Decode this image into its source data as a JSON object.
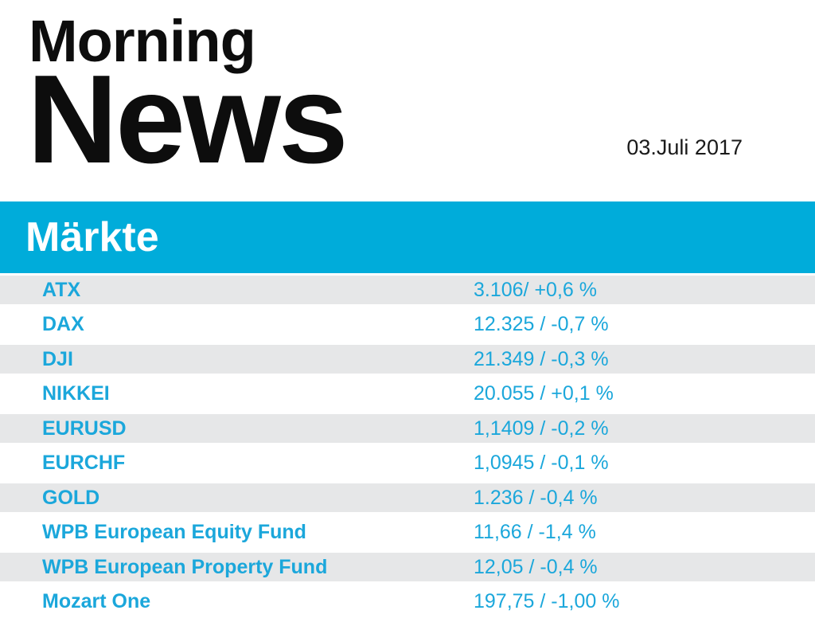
{
  "masthead": {
    "title_line1": "Morning",
    "title_line2": "News",
    "date": "03.Juli 2017"
  },
  "section": {
    "title": "Märkte"
  },
  "markets": {
    "rows": [
      {
        "label": "ATX",
        "value": "3.106/ +0,6 %"
      },
      {
        "label": "DAX",
        "value": "12.325 / -0,7 %"
      },
      {
        "label": "DJI",
        "value": "21.349 / -0,3 %"
      },
      {
        "label": "NIKKEI",
        "value": "20.055 / +0,1 %"
      },
      {
        "label": "EURUSD",
        "value": "1,1409 / -0,2 %"
      },
      {
        "label": "EURCHF",
        "value": "1,0945 / -0,1 %"
      },
      {
        "label": "GOLD",
        "value": "1.236 / -0,4 %"
      },
      {
        "label": "WPB European Equity Fund",
        "value": "11,66 / -1,4 %"
      },
      {
        "label": "WPB European Property Fund",
        "value": "12,05 / -0,4 %"
      },
      {
        "label": "Mozart One",
        "value": "197,75 / -1,00 %"
      }
    ]
  },
  "colors": {
    "accent_band": "#00acda",
    "table_text": "#1ba7db",
    "alt_row_bg": "#e6e7e8",
    "section_title_text": "#ffffff",
    "masthead_text": "#0d0d0d"
  }
}
